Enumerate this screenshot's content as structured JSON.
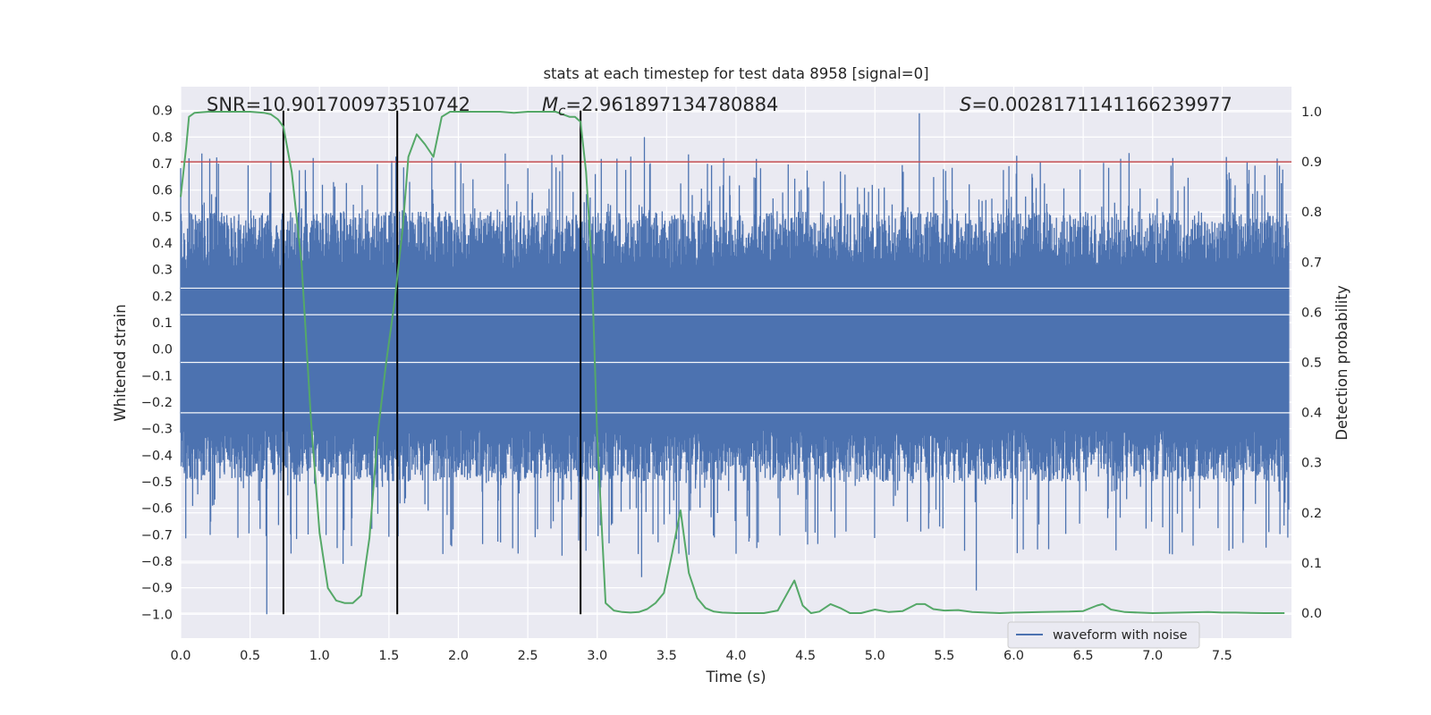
{
  "chart_data": {
    "type": "line",
    "title": "stats at each timestep for test data 8958 [signal=0]",
    "xlabel": "Time (s)",
    "ylabel": "Whitened strain",
    "ylabel_right": "Detection probability",
    "xlim": [
      0.0,
      8.0
    ],
    "ylim": [
      -1.09,
      0.99
    ],
    "ylim_right": [
      -0.05,
      1.05
    ],
    "xticks": [
      "0.0",
      "0.5",
      "1.0",
      "1.5",
      "2.0",
      "2.5",
      "3.0",
      "3.5",
      "4.0",
      "4.5",
      "5.0",
      "5.5",
      "6.0",
      "6.5",
      "7.0",
      "7.5"
    ],
    "yticks": [
      "0.9",
      "0.8",
      "0.7",
      "0.6",
      "0.5",
      "0.4",
      "0.3",
      "0.2",
      "0.1",
      "0.0",
      "-0.1",
      "-0.2",
      "-0.3",
      "-0.4",
      "-0.5",
      "-0.6",
      "-0.7",
      "-0.8",
      "-0.9",
      "-1.0"
    ],
    "yticks_right": [
      "1.0",
      "0.9",
      "0.8",
      "0.7",
      "0.6",
      "0.5",
      "0.4",
      "0.3",
      "0.2",
      "0.1",
      "0.0"
    ],
    "legend": {
      "labels": [
        "waveform with noise"
      ],
      "placement": "lower-right"
    },
    "annotations": {
      "snr": "SNR=10.901700973510742",
      "mc_symbol": "M",
      "mc_sub": "c",
      "mc_value": "=2.961897134780884",
      "s_symbol": "S",
      "s_value": "=0.0028171141166239977"
    },
    "threshold": {
      "axis": "right",
      "value": 0.9,
      "color": "#c44e52"
    },
    "vlines": {
      "x": [
        0.74,
        1.56,
        2.88
      ],
      "y_range": [
        -1.0,
        0.9
      ],
      "color": "#000000"
    },
    "series": [
      {
        "name": "waveform with noise",
        "axis": "left",
        "color": "#4c72b0",
        "style": "dense noisy strain trace; core band about -0.45..0.50, spikes up to 0.90, down to -1.0",
        "spike_peaks": [
          [
            0.06,
            0.72
          ],
          [
            0.62,
            -1.0
          ],
          [
            0.65,
            0.71
          ],
          [
            1.17,
            -0.81
          ],
          [
            1.52,
            0.71
          ],
          [
            3.32,
            -0.86
          ],
          [
            3.34,
            0.8
          ],
          [
            5.32,
            0.89
          ],
          [
            5.73,
            -0.91
          ],
          [
            6.83,
            0.74
          ],
          [
            7.55,
            -0.76
          ]
        ]
      },
      {
        "name": "detection probability",
        "axis": "right",
        "color": "#55a868",
        "x": [
          0.0,
          0.04,
          0.06,
          0.1,
          0.2,
          0.3,
          0.4,
          0.5,
          0.6,
          0.65,
          0.7,
          0.74,
          0.8,
          0.87,
          0.94,
          1.0,
          1.06,
          1.12,
          1.18,
          1.24,
          1.3,
          1.36,
          1.42,
          1.48,
          1.54,
          1.6,
          1.64,
          1.7,
          1.76,
          1.82,
          1.88,
          1.94,
          2.0,
          2.1,
          2.2,
          2.3,
          2.4,
          2.5,
          2.6,
          2.7,
          2.8,
          2.84,
          2.88,
          2.92,
          2.96,
          3.0,
          3.06,
          3.12,
          3.18,
          3.24,
          3.3,
          3.36,
          3.42,
          3.48,
          3.54,
          3.6,
          3.66,
          3.72,
          3.78,
          3.84,
          3.9,
          4.0,
          4.1,
          4.2,
          4.3,
          4.36,
          4.42,
          4.48,
          4.54,
          4.6,
          4.68,
          4.75,
          4.82,
          4.9,
          5.0,
          5.1,
          5.2,
          5.3,
          5.36,
          5.42,
          5.5,
          5.6,
          5.7,
          5.8,
          5.9,
          6.0,
          6.2,
          6.4,
          6.5,
          6.6,
          6.64,
          6.7,
          6.8,
          7.0,
          7.2,
          7.4,
          7.5,
          7.6,
          7.8,
          7.95
        ],
        "values": [
          0.83,
          0.93,
          0.99,
          0.998,
          1.0,
          1.0,
          1.0,
          1.0,
          0.998,
          0.995,
          0.985,
          0.97,
          0.88,
          0.7,
          0.38,
          0.16,
          0.05,
          0.025,
          0.02,
          0.02,
          0.035,
          0.15,
          0.36,
          0.5,
          0.62,
          0.77,
          0.91,
          0.955,
          0.935,
          0.91,
          0.99,
          1.0,
          1.0,
          1.0,
          1.0,
          1.0,
          0.998,
          1.0,
          1.0,
          1.0,
          0.99,
          0.99,
          0.98,
          0.88,
          0.7,
          0.35,
          0.02,
          0.005,
          0.002,
          0.001,
          0.002,
          0.008,
          0.02,
          0.04,
          0.12,
          0.205,
          0.08,
          0.03,
          0.01,
          0.003,
          0.001,
          0.0,
          0.0,
          0.0,
          0.005,
          0.035,
          0.065,
          0.015,
          0.0,
          0.003,
          0.018,
          0.01,
          0.0,
          0.0,
          0.007,
          0.002,
          0.004,
          0.018,
          0.018,
          0.008,
          0.005,
          0.006,
          0.002,
          0.001,
          0.0,
          0.001,
          0.002,
          0.003,
          0.004,
          0.015,
          0.018,
          0.007,
          0.002,
          0.0,
          0.001,
          0.002,
          0.001,
          0.001,
          0.0,
          0.0
        ]
      }
    ]
  }
}
